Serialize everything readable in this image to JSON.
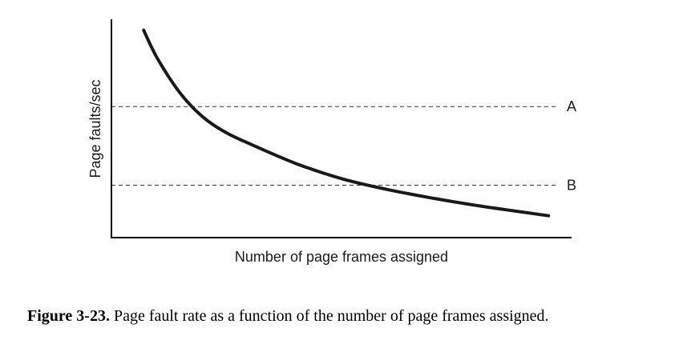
{
  "chart_data": {
    "type": "line",
    "title": "",
    "xlabel": "Number of page frames assigned",
    "ylabel": "Page faults/sec",
    "xlim": [
      0,
      100
    ],
    "ylim": [
      0,
      100
    ],
    "grid": false,
    "legend": "none",
    "series": [
      {
        "x": [
          7,
          10,
          15,
          20,
          25,
          30,
          40,
          50,
          60,
          70,
          80,
          90,
          95
        ],
        "y": [
          95,
          82,
          66,
          55,
          48,
          43,
          34,
          27,
          22,
          18,
          14.5,
          11.5,
          10
        ]
      }
    ],
    "reference_lines": [
      {
        "label": "A",
        "y": 60
      },
      {
        "label": "B",
        "y": 24
      }
    ],
    "colors": {
      "curve": "#1a1a1a",
      "axes": "#000000",
      "reference": "#333333"
    }
  },
  "caption": {
    "figure_number": "Figure 3-23.",
    "text": "Page fault rate as a function of the number of page frames assigned."
  }
}
